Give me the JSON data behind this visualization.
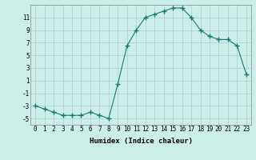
{
  "x": [
    0,
    1,
    2,
    3,
    4,
    5,
    6,
    7,
    8,
    9,
    10,
    11,
    12,
    13,
    14,
    15,
    16,
    17,
    18,
    19,
    20,
    21,
    22,
    23
  ],
  "y": [
    -3,
    -3.5,
    -4,
    -4.5,
    -4.5,
    -4.5,
    -4,
    -4.5,
    -5,
    0.5,
    6.5,
    9,
    11,
    11.5,
    12,
    12.5,
    12.5,
    11,
    9,
    8,
    7.5,
    7.5,
    6.5,
    2
  ],
  "line_color": "#1a7a6e",
  "marker": "+",
  "marker_size": 4,
  "bg_color": "#cceee8",
  "grid_color": "#aacccc",
  "xlabel": "Humidex (Indice chaleur)",
  "ylim": [
    -6,
    13
  ],
  "yticks": [
    -5,
    -3,
    -1,
    1,
    3,
    5,
    7,
    9,
    11
  ],
  "xticks": [
    0,
    1,
    2,
    3,
    4,
    5,
    6,
    7,
    8,
    9,
    10,
    11,
    12,
    13,
    14,
    15,
    16,
    17,
    18,
    19,
    20,
    21,
    22,
    23
  ],
  "label_fontsize": 6.5,
  "tick_fontsize": 5.5
}
